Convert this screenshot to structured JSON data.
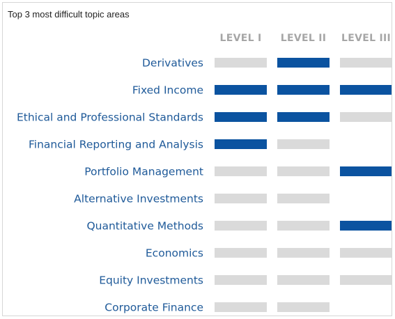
{
  "chart_data": {
    "type": "table",
    "title": "Top 3 most difficult topic areas",
    "columns": [
      "LEVEL I",
      "LEVEL II",
      "LEVEL III"
    ],
    "rows": [
      {
        "topic": "Derivatives",
        "cells": [
          "not_top3",
          "top3",
          "not_top3"
        ]
      },
      {
        "topic": "Fixed Income",
        "cells": [
          "top3",
          "top3",
          "top3"
        ]
      },
      {
        "topic": "Ethical and Professional Standards",
        "cells": [
          "top3",
          "top3",
          "not_top3"
        ]
      },
      {
        "topic": "Financial Reporting and Analysis",
        "cells": [
          "top3",
          "not_top3",
          "not_tested"
        ]
      },
      {
        "topic": "Portfolio Management",
        "cells": [
          "not_top3",
          "not_top3",
          "top3"
        ]
      },
      {
        "topic": "Alternative Investments",
        "cells": [
          "not_top3",
          "not_top3",
          "not_tested"
        ]
      },
      {
        "topic": "Quantitative Methods",
        "cells": [
          "not_top3",
          "not_top3",
          "top3"
        ]
      },
      {
        "topic": "Economics",
        "cells": [
          "not_top3",
          "not_top3",
          "not_top3"
        ]
      },
      {
        "topic": "Equity Investments",
        "cells": [
          "not_top3",
          "not_top3",
          "not_top3"
        ]
      },
      {
        "topic": "Corporate Finance",
        "cells": [
          "not_top3",
          "not_top3",
          "not_tested"
        ]
      }
    ],
    "colors": {
      "top3": "#0b53a0",
      "not_top3": "#dadada",
      "label": "#1f5a99",
      "header": "#a6a6a6"
    },
    "legend": "none",
    "grid": false
  }
}
